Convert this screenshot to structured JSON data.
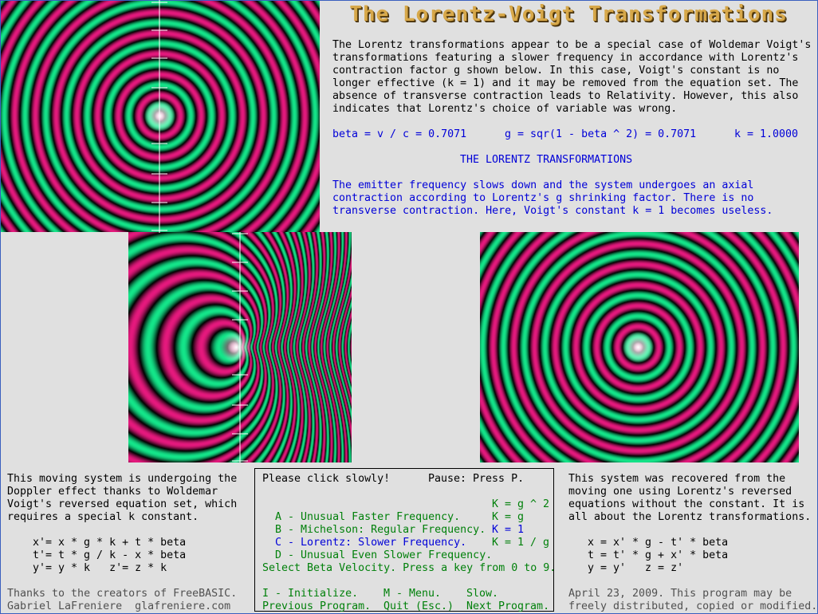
{
  "title": "The Lorentz-Voigt Transformations",
  "intro": [
    "The Lorentz transformations appear to be a special case of Woldemar Voigt's",
    "transformations featuring a slower frequency in accordance with Lorentz's",
    "contraction factor g shown below. In this case, Voigt's constant is no",
    "longer effective (k = 1) and it may be removed from the equation set. The",
    "absence of transverse contraction leads to Relativity. However, this also",
    "indicates that Lorentz's choice of variable was wrong."
  ],
  "params": {
    "beta": "beta = v / c = 0.7071",
    "g": "g = sqr(1 - beta ^ 2) = 0.7071",
    "k": "k = 1.0000"
  },
  "section_heading": "THE LORENTZ TRANSFORMATIONS",
  "description": [
    "The emitter frequency slows down and the system undergoes an axial",
    "contraction according to Lorentz's g shrinking factor. There is no",
    "transverse contraction. Here, Voigt's constant k = 1 becomes useless."
  ],
  "left_panel": {
    "text": [
      "This moving system is undergoing the",
      "Doppler effect thanks to Woldemar",
      "Voigt's reversed equation set, which",
      "requires a special k constant."
    ],
    "equations": [
      "x'= x * g * k + t * beta",
      "t'= t * g / k - x * beta",
      "y'= y * k   z'= z * k"
    ],
    "credits": [
      "Thanks to the creators of FreeBASIC.",
      "Gabriel LaFreniere  glafreniere.com"
    ]
  },
  "menu": {
    "click_note": "Please click slowly!",
    "pause_note": "Pause: Press P.",
    "options": [
      {
        "label": "A - Unusual Faster Frequency.",
        "formula": "K = g ^ 2",
        "color": "#00800a"
      },
      {
        "label": "B - Michelson: Regular Frequency.",
        "formula": "K = g",
        "color": "#00800a"
      },
      {
        "label": "C - Lorentz: Slower Frequency.",
        "formula": "K = 1",
        "color": "#0000d8"
      },
      {
        "label": "D - Unusual Even Slower Frequency.",
        "formula": "K = 1 / g",
        "color": "#00800a"
      }
    ],
    "beta_prompt": "Select Beta Velocity. Press a key from 0 to 9.",
    "initialize": "I - Initialize.",
    "menu": "M - Menu.",
    "slow": "Slow.",
    "previous": "Previous Program.",
    "quit": "Quit (Esc.)",
    "next": "Next Program."
  },
  "right_panel": {
    "text": [
      "This system was recovered from the",
      "moving one using Lorentz's reversed",
      "equations without the constant. It is",
      "all about the Lorentz transformations."
    ],
    "equations": [
      "x = x' * g - t' * beta",
      "t = t' * g + x' * beta",
      "y = y'   z = z'"
    ],
    "footer": [
      "April 23, 2009. This program may be",
      "freely distributed, copied or modified."
    ]
  },
  "colors": {
    "background": "#e0e0e0",
    "title": "#d7a84a",
    "blue_text": "#0000d8",
    "green_text": "#00800a",
    "wave_magenta": "#e6197e",
    "wave_green": "#14e68a"
  }
}
